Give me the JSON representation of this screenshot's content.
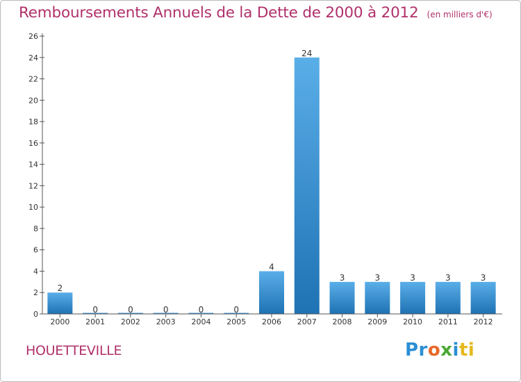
{
  "title": "Remboursements Annuels de la Dette de 2000 à 2012",
  "title_unit": "(en milliers d'€)",
  "commune": "HOUETTEVILLE",
  "logo": {
    "text": "Proxiti",
    "letters": [
      "Pr",
      "o",
      "x",
      "i",
      "ti"
    ]
  },
  "colors": {
    "title": "#b0306a",
    "bar_light": "#5aaee8",
    "bar_dark": "#1f72b3",
    "axis": "#555555"
  },
  "chart_data": {
    "type": "bar",
    "categories": [
      "2000",
      "2001",
      "2002",
      "2003",
      "2004",
      "2005",
      "2006",
      "2007",
      "2008",
      "2009",
      "2010",
      "2011",
      "2012"
    ],
    "values": [
      2,
      0,
      0,
      0,
      0,
      0,
      4,
      24,
      3,
      3,
      3,
      3,
      3
    ],
    "data_labels": [
      "2",
      "0",
      "0",
      "0",
      "0",
      "0",
      "4",
      "24",
      "3",
      "3",
      "3",
      "3",
      "3"
    ],
    "ylim": [
      0,
      26
    ],
    "yticks": [
      0,
      2,
      4,
      6,
      8,
      10,
      12,
      14,
      16,
      18,
      20,
      22,
      24,
      26
    ],
    "ytick_labels": [
      "0",
      "2",
      "4",
      "6",
      "8",
      "10",
      "12",
      "14",
      "16",
      "18",
      "20",
      "22",
      "24",
      "26"
    ],
    "grid": false,
    "legend": "none"
  }
}
